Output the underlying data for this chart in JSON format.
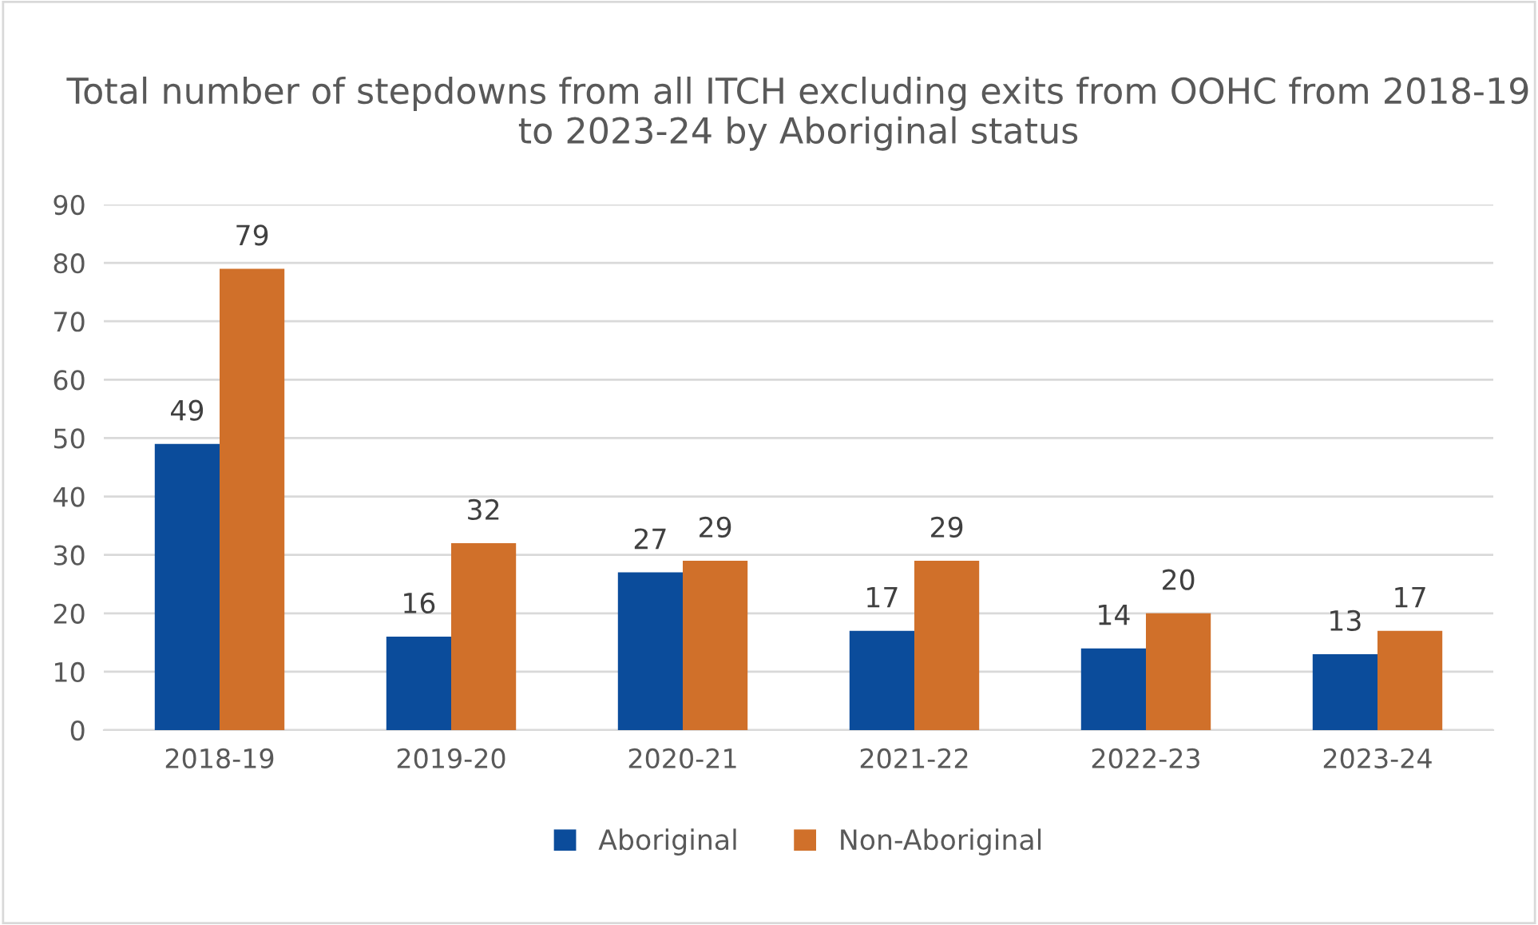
{
  "chart_data": {
    "type": "bar",
    "title": "Total number of stepdowns from all ITCH excluding exits from OOHC from 2018-19 to 2023-24 by Aboriginal status",
    "categories": [
      "2018-19",
      "2019-20",
      "2020-21",
      "2021-22",
      "2022-23",
      "2023-24"
    ],
    "series": [
      {
        "name": "Aboriginal",
        "color": "#0b4c9b",
        "values": [
          49,
          16,
          27,
          17,
          14,
          13
        ]
      },
      {
        "name": "Non-Aboriginal",
        "color": "#d0702a",
        "values": [
          79,
          32,
          29,
          29,
          20,
          17
        ]
      }
    ],
    "ylim": [
      0,
      90
    ],
    "yticks": [
      0,
      10,
      20,
      30,
      40,
      50,
      60,
      70,
      80,
      90
    ],
    "grid": "y",
    "legend": "bottom",
    "data_labels": true
  }
}
